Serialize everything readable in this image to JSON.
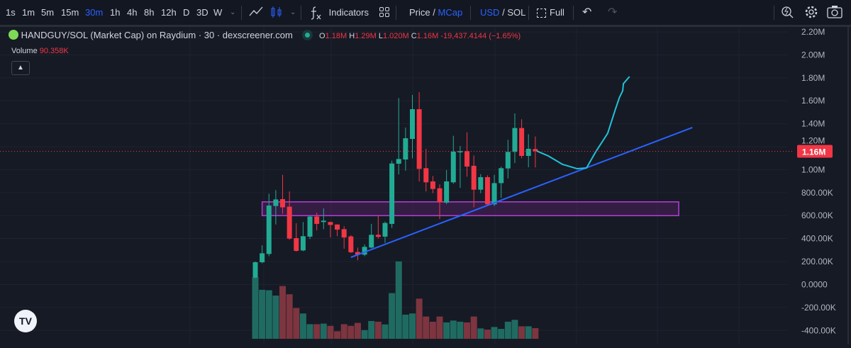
{
  "toolbar": {
    "intervals": [
      "1s",
      "1m",
      "5m",
      "15m",
      "30m",
      "1h",
      "4h",
      "8h",
      "12h",
      "D",
      "3D",
      "W"
    ],
    "active_interval": "30m",
    "indicators_label": "Indicators",
    "price_label": "Price",
    "mcap_label": "MCap",
    "usd_label": "USD",
    "sol_label": "SOL",
    "slash": "/",
    "full_label": "Full"
  },
  "legend": {
    "title": "HANDGUY/SOL (Market Cap) on Raydium · 30 · dexscreener.com",
    "o_label": "O",
    "o_value": "1.18M",
    "h_label": "H",
    "h_value": "1.29M",
    "l_label": "L",
    "l_value": "1.020M",
    "c_label": "C",
    "c_value": "1.16M",
    "change": "-19,437.4144 (−1.65%)",
    "volume_label": "Volume",
    "volume_value": "90.358K"
  },
  "logo_text": "TV",
  "chart_data": {
    "type": "candlestick",
    "title": "HANDGUY/SOL (Market Cap) on Raydium · 30 · dexscreener.com",
    "colors": {
      "up": "#22ab94",
      "down": "#f23645",
      "up_volume": "#1f6b62",
      "down_volume": "#7d3540",
      "trendline": "#2962ff",
      "curve": "#22c1d6",
      "zone": "#9c27b0",
      "background": "#161a25"
    },
    "ylim": [
      -400000,
      2200000
    ],
    "grid": true,
    "y_ticks": [
      {
        "value": 2200000,
        "label": "2.20M"
      },
      {
        "value": 2000000,
        "label": "2.00M"
      },
      {
        "value": 1800000,
        "label": "1.80M"
      },
      {
        "value": 1600000,
        "label": "1.60M"
      },
      {
        "value": 1400000,
        "label": "1.40M"
      },
      {
        "value": 1200000,
        "label": "1.20M"
      },
      {
        "value": 1000000,
        "label": "1.00M"
      },
      {
        "value": 800000,
        "label": "800.00K"
      },
      {
        "value": 600000,
        "label": "600.00K"
      },
      {
        "value": 400000,
        "label": "400.00K"
      },
      {
        "value": 200000,
        "label": "200.00K"
      },
      {
        "value": 0,
        "label": "0.0000"
      },
      {
        "value": -200000,
        "label": "-200.00K"
      },
      {
        "value": -400000,
        "label": "-400.00K"
      }
    ],
    "last_price": {
      "value": 1160000,
      "label": "1.16M"
    },
    "ohlc": [
      [
        60000,
        200000,
        55000,
        194000
      ],
      [
        194000,
        342000,
        185000,
        272000
      ],
      [
        266000,
        791000,
        246000,
        688000
      ],
      [
        684000,
        822000,
        523000,
        741000
      ],
      [
        744000,
        955000,
        616000,
        672000
      ],
      [
        678000,
        811000,
        390000,
        400000
      ],
      [
        404000,
        534000,
        287000,
        293000
      ],
      [
        297000,
        544000,
        290000,
        421000
      ],
      [
        417000,
        596000,
        396000,
        592000
      ],
      [
        592000,
        626000,
        472000,
        528000
      ],
      [
        544000,
        663000,
        482000,
        556000
      ],
      [
        544000,
        548000,
        410000,
        519000
      ],
      [
        523000,
        523000,
        421000,
        478000
      ],
      [
        482000,
        507000,
        312000,
        410000
      ],
      [
        419000,
        430000,
        275000,
        281000
      ],
      [
        283000,
        322000,
        211000,
        260000
      ],
      [
        260000,
        349000,
        246000,
        328000
      ],
      [
        322000,
        528000,
        315000,
        433000
      ],
      [
        433000,
        596000,
        400000,
        415000
      ],
      [
        417000,
        548000,
        363000,
        536000
      ],
      [
        528000,
        1079000,
        493000,
        1054000
      ],
      [
        1052000,
        1624000,
        959000,
        1093000
      ],
      [
        1089000,
        1367000,
        992000,
        1274000
      ],
      [
        1268000,
        1651000,
        1099000,
        1527000
      ],
      [
        1527000,
        1675000,
        898000,
        1007000
      ],
      [
        1013000,
        1182000,
        811000,
        890000
      ],
      [
        898000,
        945000,
        795000,
        832000
      ],
      [
        838000,
        872000,
        569000,
        715000
      ],
      [
        713000,
        997000,
        700000,
        898000
      ],
      [
        890000,
        1295000,
        877000,
        1157000
      ],
      [
        1151000,
        1206000,
        842000,
        1161000
      ],
      [
        1161000,
        1326000,
        939000,
        1027000
      ],
      [
        1034000,
        1124000,
        672000,
        826000
      ],
      [
        826000,
        962000,
        795000,
        935000
      ],
      [
        935000,
        951000,
        692000,
        698000
      ],
      [
        698000,
        955000,
        684000,
        883000
      ],
      [
        883000,
        1027000,
        754000,
        1013000
      ],
      [
        1011000,
        1260000,
        925000,
        1155000
      ],
      [
        1155000,
        1490000,
        1058000,
        1363000
      ],
      [
        1363000,
        1439000,
        1099000,
        1120000
      ],
      [
        1120000,
        1309000,
        1021000,
        1182000
      ],
      [
        1180000,
        1290000,
        1020000,
        1160000
      ]
    ],
    "volume": [
      522000,
      416000,
      412000,
      367000,
      448000,
      378000,
      261000,
      215000,
      124000,
      124000,
      129000,
      110000,
      64000,
      124000,
      110000,
      135000,
      74000,
      151000,
      145000,
      122000,
      388000,
      657000,
      205000,
      215000,
      341000,
      189000,
      145000,
      189000,
      139000,
      155000,
      145000,
      139000,
      189000,
      88000,
      78000,
      100000,
      84000,
      145000,
      161000,
      106000,
      106000,
      90358
    ],
    "drawings": {
      "zone": {
        "from_bar": 2,
        "to_bar": 63,
        "price_low": 600000,
        "price_high": 720000
      },
      "trendline": {
        "from": [
          15,
          237000
        ],
        "to": [
          65,
          1367000
        ]
      },
      "curve": [
        [
          42.2,
          1163000
        ],
        [
          43.9,
          1120000
        ],
        [
          46.0,
          1046000
        ],
        [
          48.1,
          1009000
        ],
        [
          49.5,
          1015000
        ],
        [
          50.8,
          1151000
        ],
        [
          52.6,
          1317000
        ],
        [
          53.7,
          1521000
        ],
        [
          54.3,
          1626000
        ],
        [
          54.8,
          1688000
        ],
        [
          54.9,
          1749000
        ],
        [
          55.8,
          1811000
        ]
      ]
    }
  }
}
